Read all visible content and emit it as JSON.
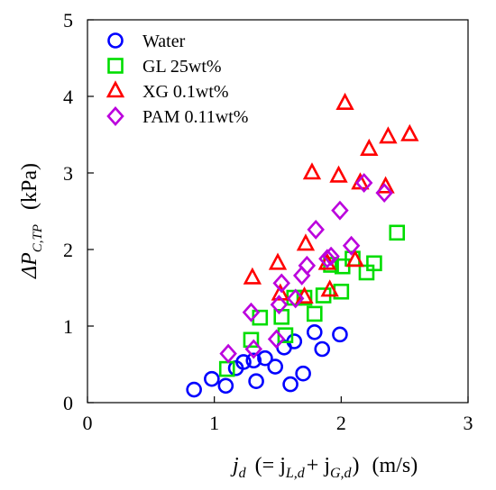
{
  "chart_data": {
    "type": "scatter",
    "xlabel": {
      "var": "j",
      "var_sub": "d",
      "middle": "(= j",
      "term1_sub": "L,d",
      "plus": "+ j",
      "term2_sub": "G,d",
      "close": ")",
      "unit": "(m/s)"
    },
    "ylabel": {
      "prefix": "ΔP",
      "sub": "C,TP",
      "unit": "(kPa)"
    },
    "xlim": [
      0,
      3
    ],
    "ylim": [
      0,
      5
    ],
    "x_ticks": [
      "0",
      "1",
      "2",
      "3"
    ],
    "y_ticks": [
      "0",
      "1",
      "2",
      "3",
      "4",
      "5"
    ],
    "grid": false,
    "legend": "top-left",
    "series": [
      {
        "name": "Water",
        "marker": "circle",
        "color": "#0000ff",
        "points": [
          {
            "x": 0.84,
            "y": 0.17
          },
          {
            "x": 0.98,
            "y": 0.31
          },
          {
            "x": 1.09,
            "y": 0.22
          },
          {
            "x": 1.17,
            "y": 0.45
          },
          {
            "x": 1.23,
            "y": 0.53
          },
          {
            "x": 1.31,
            "y": 0.55
          },
          {
            "x": 1.33,
            "y": 0.28
          },
          {
            "x": 1.4,
            "y": 0.58
          },
          {
            "x": 1.48,
            "y": 0.47
          },
          {
            "x": 1.55,
            "y": 0.72
          },
          {
            "x": 1.6,
            "y": 0.24
          },
          {
            "x": 1.63,
            "y": 0.8
          },
          {
            "x": 1.7,
            "y": 0.38
          },
          {
            "x": 1.79,
            "y": 0.92
          },
          {
            "x": 1.85,
            "y": 0.7
          },
          {
            "x": 1.99,
            "y": 0.89
          }
        ]
      },
      {
        "name": "GL 25wt%",
        "marker": "square",
        "color": "#00dd00",
        "points": [
          {
            "x": 1.1,
            "y": 0.44
          },
          {
            "x": 1.29,
            "y": 0.82
          },
          {
            "x": 1.36,
            "y": 1.11
          },
          {
            "x": 1.53,
            "y": 1.12
          },
          {
            "x": 1.56,
            "y": 0.88
          },
          {
            "x": 1.63,
            "y": 1.37
          },
          {
            "x": 1.71,
            "y": 1.37
          },
          {
            "x": 1.79,
            "y": 1.16
          },
          {
            "x": 1.86,
            "y": 1.4
          },
          {
            "x": 1.92,
            "y": 1.8
          },
          {
            "x": 2.0,
            "y": 1.45
          },
          {
            "x": 2.01,
            "y": 1.78
          },
          {
            "x": 2.09,
            "y": 1.88
          },
          {
            "x": 2.2,
            "y": 1.7
          },
          {
            "x": 2.26,
            "y": 1.82
          },
          {
            "x": 2.44,
            "y": 2.22
          }
        ]
      },
      {
        "name": "XG 0.1wt%",
        "marker": "triangle",
        "color": "#ff0000",
        "points": [
          {
            "x": 1.3,
            "y": 1.63
          },
          {
            "x": 1.5,
            "y": 1.82
          },
          {
            "x": 1.52,
            "y": 1.42
          },
          {
            "x": 1.71,
            "y": 1.38
          },
          {
            "x": 1.72,
            "y": 2.07
          },
          {
            "x": 1.77,
            "y": 3.0
          },
          {
            "x": 1.89,
            "y": 1.82
          },
          {
            "x": 1.91,
            "y": 1.47
          },
          {
            "x": 1.98,
            "y": 2.96
          },
          {
            "x": 2.03,
            "y": 3.91
          },
          {
            "x": 2.11,
            "y": 1.86
          },
          {
            "x": 2.15,
            "y": 2.87
          },
          {
            "x": 2.22,
            "y": 3.31
          },
          {
            "x": 2.35,
            "y": 2.82
          },
          {
            "x": 2.37,
            "y": 3.47
          },
          {
            "x": 2.54,
            "y": 3.5
          }
        ]
      },
      {
        "name": "PAM 0.11wt%",
        "marker": "diamond",
        "color": "#bb00dd",
        "points": [
          {
            "x": 1.11,
            "y": 0.64
          },
          {
            "x": 1.29,
            "y": 1.18
          },
          {
            "x": 1.31,
            "y": 0.7
          },
          {
            "x": 1.49,
            "y": 0.83
          },
          {
            "x": 1.51,
            "y": 1.28
          },
          {
            "x": 1.53,
            "y": 1.56
          },
          {
            "x": 1.64,
            "y": 1.36
          },
          {
            "x": 1.69,
            "y": 1.66
          },
          {
            "x": 1.73,
            "y": 1.79
          },
          {
            "x": 1.8,
            "y": 2.26
          },
          {
            "x": 1.89,
            "y": 1.88
          },
          {
            "x": 1.92,
            "y": 1.91
          },
          {
            "x": 1.99,
            "y": 2.51
          },
          {
            "x": 2.08,
            "y": 2.05
          },
          {
            "x": 2.18,
            "y": 2.87
          },
          {
            "x": 2.34,
            "y": 2.74
          }
        ]
      }
    ]
  }
}
